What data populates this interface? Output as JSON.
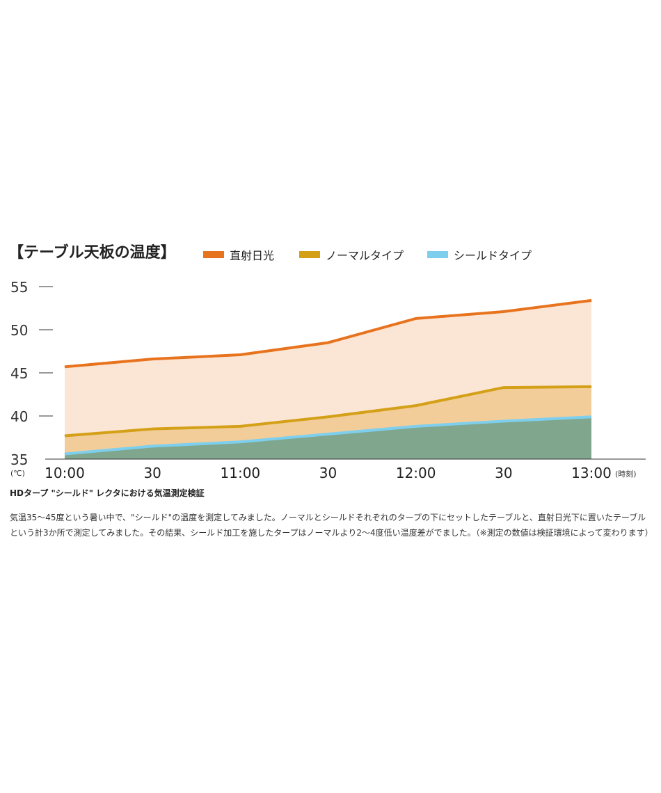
{
  "chart_data": {
    "type": "area",
    "title": "【テーブル天板の温度】",
    "y_unit": "(℃)",
    "x_unit": "(時刻)",
    "ylim": [
      35,
      55
    ],
    "yticks": [
      55,
      50,
      45,
      40,
      35
    ],
    "xticks": [
      "10:00",
      "30",
      "11:00",
      "30",
      "12:00",
      "30",
      "13:00"
    ],
    "x": [
      0,
      1,
      2,
      3,
      4,
      5,
      6
    ],
    "series": [
      {
        "name": "直射日光",
        "color": "#e8731e",
        "fill": "#fbe6d6",
        "values": [
          45.7,
          46.6,
          47.1,
          48.5,
          51.3,
          52.1,
          53.4
        ]
      },
      {
        "name": "ノーマルタイプ",
        "color": "#d4a017",
        "fill": "#f2cd9a",
        "values": [
          37.7,
          38.5,
          38.8,
          39.9,
          41.2,
          43.3,
          43.4
        ]
      },
      {
        "name": "シールドタイプ",
        "color": "#7ecfee",
        "fill": "#80a78d",
        "values": [
          35.6,
          36.5,
          37.0,
          37.9,
          38.8,
          39.4,
          39.9
        ]
      }
    ]
  },
  "caption": {
    "title": "HDタープ \"シールド\" レクタにおける気温測定検証",
    "body": "気温35～45度という暑い中で、\"シールド\"の温度を測定してみました。ノーマルとシールドそれぞれのタープの下にセットしたテーブルと、直射日光下に置いたテーブルという計3か所で測定してみました。その結果、シールド加工を施したタープはノーマルより2～4度低い温度差がでました。（※測定の数値は検証環境によって変わります）"
  }
}
